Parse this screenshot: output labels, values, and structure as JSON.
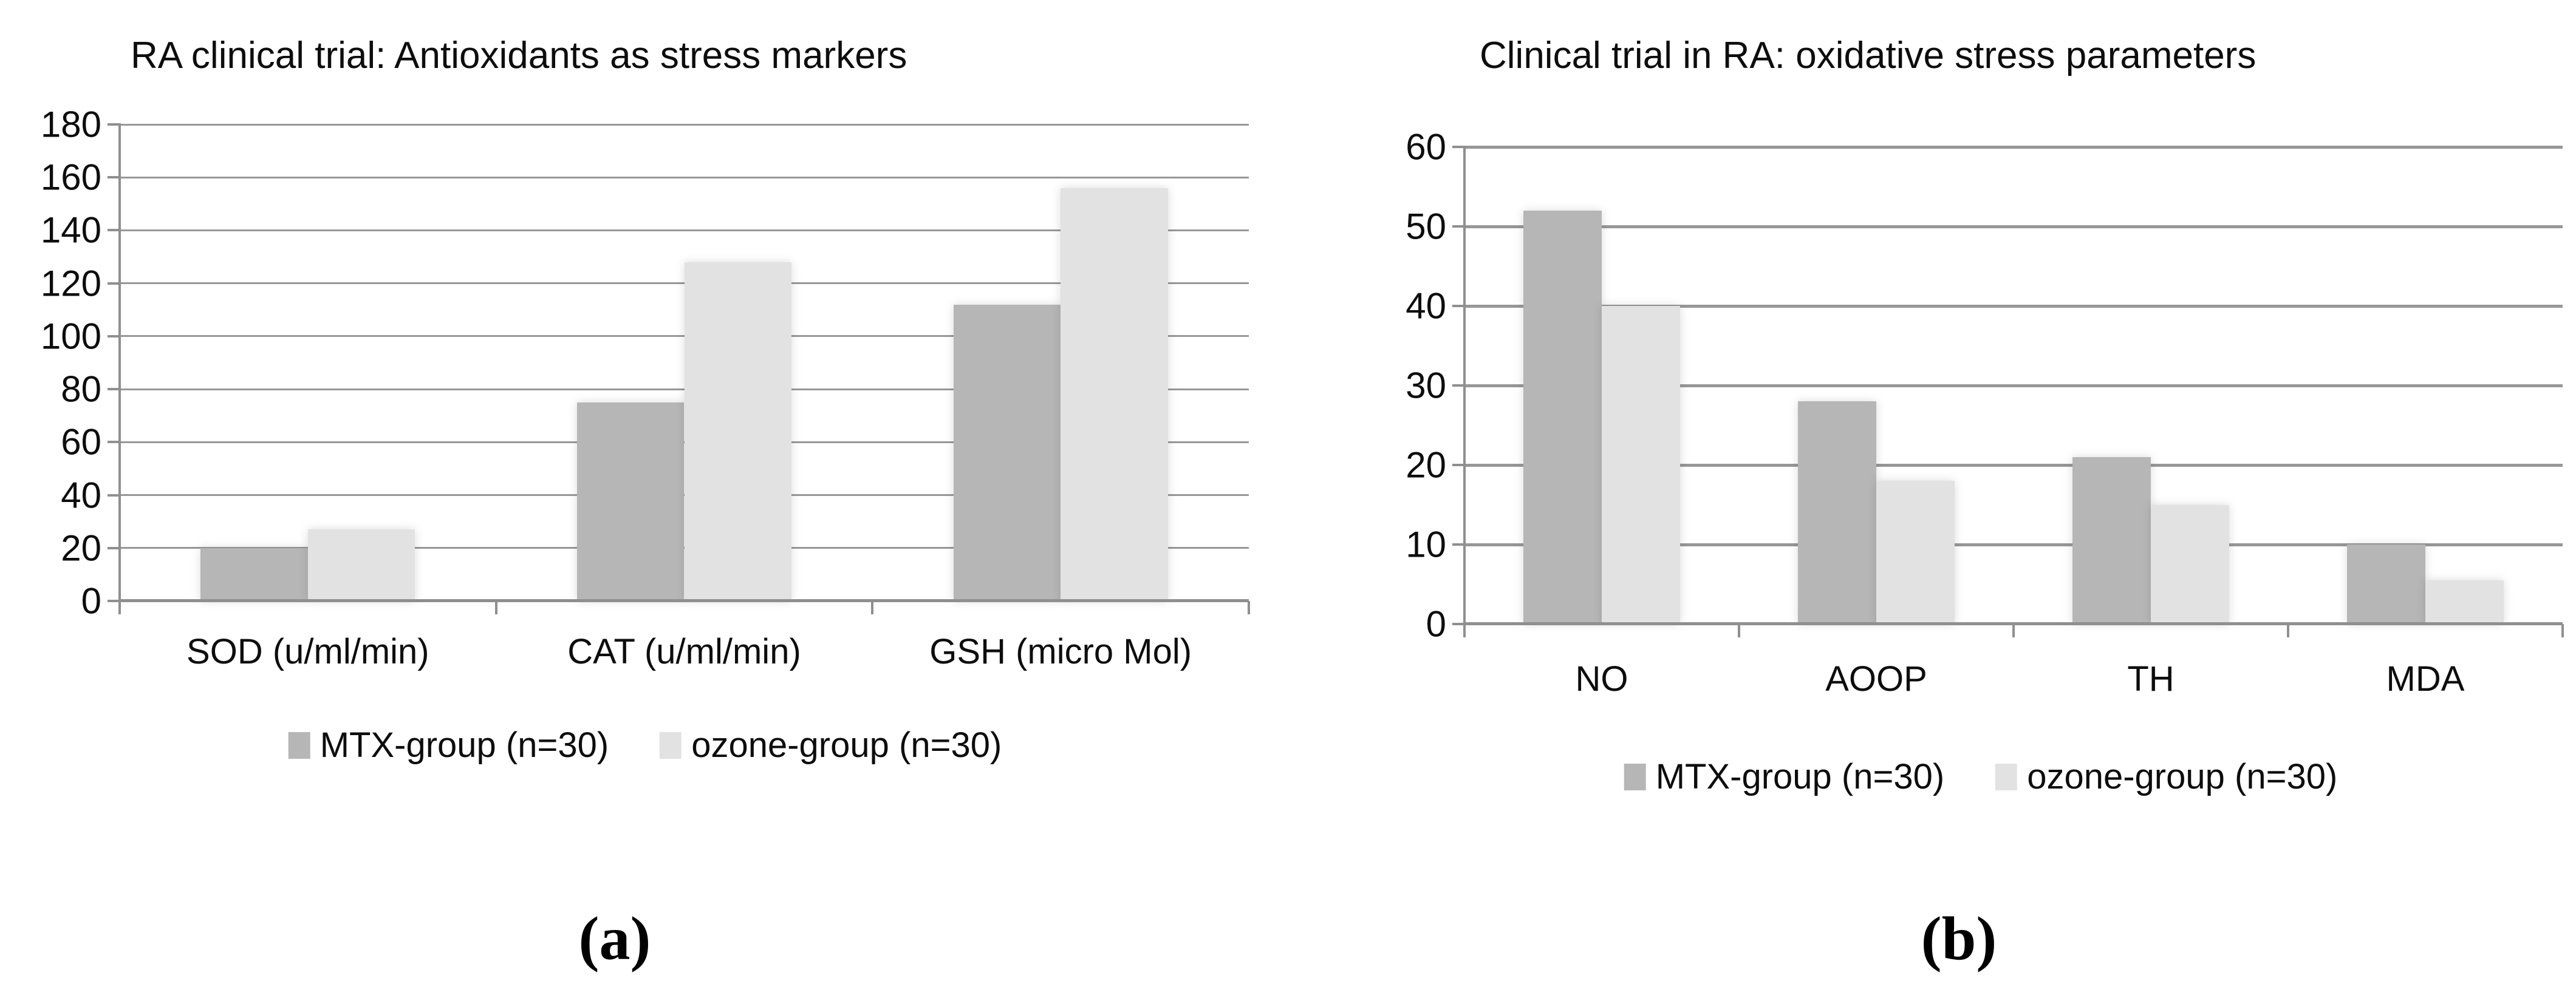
{
  "colors": {
    "mtx_bar": "#b6b6b6",
    "ozone_bar": "#e2e2e2",
    "gridline": "#979797",
    "axis": "#8f8f8f",
    "text": "#0d0d0d"
  },
  "chart_data": [
    {
      "id": "a",
      "type": "bar",
      "title": "RA clinical trial: Antioxidants as stress markers",
      "caption": "(a)",
      "categories": [
        "SOD (u/ml/min)",
        "CAT (u/ml/min)",
        "GSH (micro Mol)"
      ],
      "series": [
        {
          "name": "MTX-group (n=30)",
          "color": "#b6b6b6",
          "values": [
            20,
            75,
            112
          ]
        },
        {
          "name": "ozone-group (n=30)",
          "color": "#e2e2e2",
          "values": [
            27,
            128,
            156
          ]
        }
      ],
      "ylim": [
        0,
        180
      ],
      "ystep": 20,
      "grid": true,
      "legend_position": "bottom"
    },
    {
      "id": "b",
      "type": "bar",
      "title": "Clinical trial in RA: oxidative stress parameters",
      "caption": "(b)",
      "categories": [
        "NO",
        "AOOP",
        "TH",
        "MDA"
      ],
      "series": [
        {
          "name": "MTX-group (n=30)",
          "color": "#b6b6b6",
          "values": [
            52,
            28,
            21,
            10
          ]
        },
        {
          "name": "ozone-group (n=30)",
          "color": "#e2e2e2",
          "values": [
            40,
            18,
            15,
            5.5
          ]
        }
      ],
      "ylim": [
        0,
        60
      ],
      "ystep": 10,
      "grid": true,
      "legend_position": "bottom"
    }
  ]
}
